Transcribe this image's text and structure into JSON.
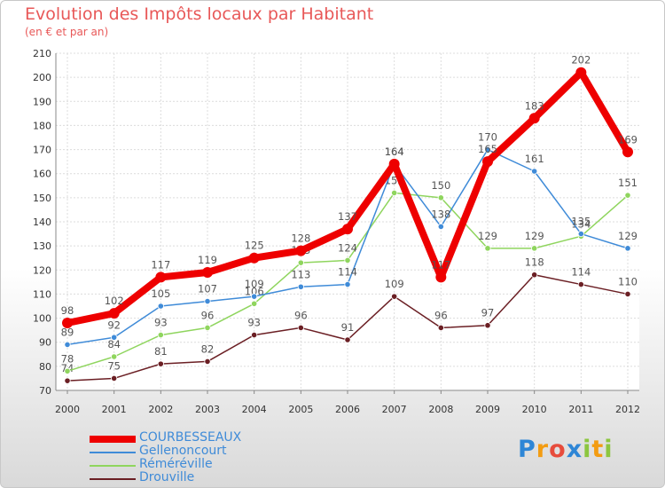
{
  "chart_data": {
    "type": "line",
    "title": "Evolution des Impôts locaux par Habitant",
    "subtitle": "(en € et par an)",
    "xlabel": "",
    "ylabel": "",
    "ylim": [
      70,
      210
    ],
    "yticks": [
      "70",
      "80",
      "90",
      "100",
      "110",
      "120",
      "130",
      "140",
      "150",
      "160",
      "170",
      "180",
      "190",
      "200",
      "210"
    ],
    "categories": [
      "2000",
      "2001",
      "2002",
      "2003",
      "2004",
      "2005",
      "2006",
      "2007",
      "2008",
      "2009",
      "2010",
      "2011",
      "2012"
    ],
    "grid": true,
    "legend_position": "bottom-left",
    "series": [
      {
        "name": "Drouville",
        "color": "#6b1f24",
        "values": [
          74,
          75,
          81,
          82,
          93,
          96,
          91,
          109,
          96,
          97,
          118,
          114,
          110
        ],
        "labels": [
          "74",
          "75",
          "81",
          "82",
          "93",
          "96",
          "91",
          "109",
          "96",
          "97",
          "118",
          "114",
          "110"
        ]
      },
      {
        "name": "Réméréville",
        "color": "#8fd55e",
        "values": [
          78,
          84,
          93,
          96,
          106,
          123,
          124,
          152,
          150,
          129,
          129,
          134,
          151
        ],
        "labels": [
          "78",
          "84",
          "93",
          "96",
          "106",
          "123",
          "124",
          "152",
          "150",
          "129",
          "129",
          "134",
          "151"
        ]
      },
      {
        "name": "Gellenoncourt",
        "color": "#3f8bd8",
        "values": [
          89,
          92,
          105,
          107,
          109,
          113,
          114,
          164,
          138,
          170,
          161,
          135,
          129
        ],
        "labels": [
          "89",
          "92",
          "105",
          "107",
          "109",
          "113",
          "114",
          "164",
          "138",
          "170",
          "161",
          "135",
          "129"
        ]
      },
      {
        "name": "COURBESSEAUX",
        "color": "#ee0000",
        "values": [
          98,
          102,
          117,
          119,
          125,
          128,
          137,
          164,
          117,
          165,
          183,
          202,
          169
        ],
        "labels": [
          "98",
          "102",
          "117",
          "119",
          "125",
          "128",
          "137",
          "164",
          "117",
          "165",
          "183",
          "202",
          "169"
        ]
      }
    ]
  },
  "legend": {
    "items": [
      {
        "label": "COURBESSEAUX",
        "color": "#ee0000"
      },
      {
        "label": "Gellenoncourt",
        "color": "#3f8bd8"
      },
      {
        "label": "Réméréville",
        "color": "#8fd55e"
      },
      {
        "label": "Drouville",
        "color": "#6b1f24"
      }
    ]
  },
  "logo": {
    "text": "Proxiti",
    "letters": [
      "P",
      "r",
      "o",
      "x",
      "i",
      "t",
      "i"
    ],
    "colors": [
      "#2e86d6",
      "#f39c12",
      "#e74c3c",
      "#2e86d6",
      "#8cc63f",
      "#f39c12",
      "#8cc63f"
    ]
  }
}
